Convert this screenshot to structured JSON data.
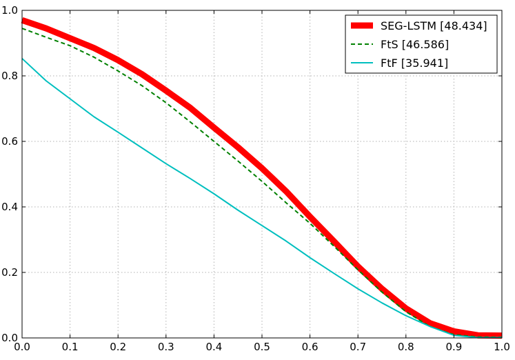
{
  "chart_data": {
    "type": "line",
    "title": "",
    "xlabel": "",
    "ylabel": "",
    "xlim": [
      0,
      1
    ],
    "ylim": [
      0,
      1
    ],
    "grid": true,
    "legend_position": "top-right",
    "x_ticks": [
      "0.0",
      "0.1",
      "0.2",
      "0.3",
      "0.4",
      "0.5",
      "0.6",
      "0.7",
      "0.8",
      "0.9",
      "1.0"
    ],
    "y_ticks": [
      "0.0",
      "0.2",
      "0.4",
      "0.6",
      "0.8",
      "1.0"
    ],
    "series": [
      {
        "name": "SEG-LSTM [48.434]",
        "color": "#ff0000",
        "style": "thick-solid",
        "x": [
          0,
          0.05,
          0.1,
          0.15,
          0.2,
          0.25,
          0.3,
          0.35,
          0.4,
          0.45,
          0.5,
          0.55,
          0.6,
          0.65,
          0.7,
          0.75,
          0.8,
          0.85,
          0.9,
          0.95,
          1.0
        ],
        "y": [
          0.97,
          0.945,
          0.915,
          0.885,
          0.848,
          0.805,
          0.755,
          0.703,
          0.642,
          0.582,
          0.518,
          0.448,
          0.37,
          0.295,
          0.218,
          0.15,
          0.09,
          0.045,
          0.02,
          0.008,
          0.007
        ]
      },
      {
        "name": "FtS [46.586]",
        "color": "#008000",
        "style": "dashed",
        "x": [
          0,
          0.05,
          0.1,
          0.15,
          0.2,
          0.25,
          0.3,
          0.35,
          0.4,
          0.45,
          0.5,
          0.55,
          0.6,
          0.65,
          0.7,
          0.75,
          0.8,
          0.85,
          0.9,
          0.95,
          1.0
        ],
        "y": [
          0.945,
          0.918,
          0.892,
          0.857,
          0.815,
          0.77,
          0.718,
          0.66,
          0.6,
          0.54,
          0.478,
          0.413,
          0.35,
          0.28,
          0.208,
          0.14,
          0.08,
          0.035,
          0.01,
          0.003,
          0.002
        ]
      },
      {
        "name": "FtF [35.941]",
        "color": "#00bfbf",
        "style": "solid",
        "x": [
          0,
          0.05,
          0.1,
          0.15,
          0.2,
          0.25,
          0.3,
          0.35,
          0.4,
          0.45,
          0.5,
          0.55,
          0.6,
          0.65,
          0.7,
          0.75,
          0.8,
          0.85,
          0.9,
          0.95,
          1.0
        ],
        "y": [
          0.853,
          0.785,
          0.73,
          0.675,
          0.628,
          0.58,
          0.532,
          0.487,
          0.44,
          0.39,
          0.343,
          0.296,
          0.245,
          0.197,
          0.15,
          0.107,
          0.068,
          0.035,
          0.008,
          0.001,
          0.001
        ]
      }
    ]
  }
}
